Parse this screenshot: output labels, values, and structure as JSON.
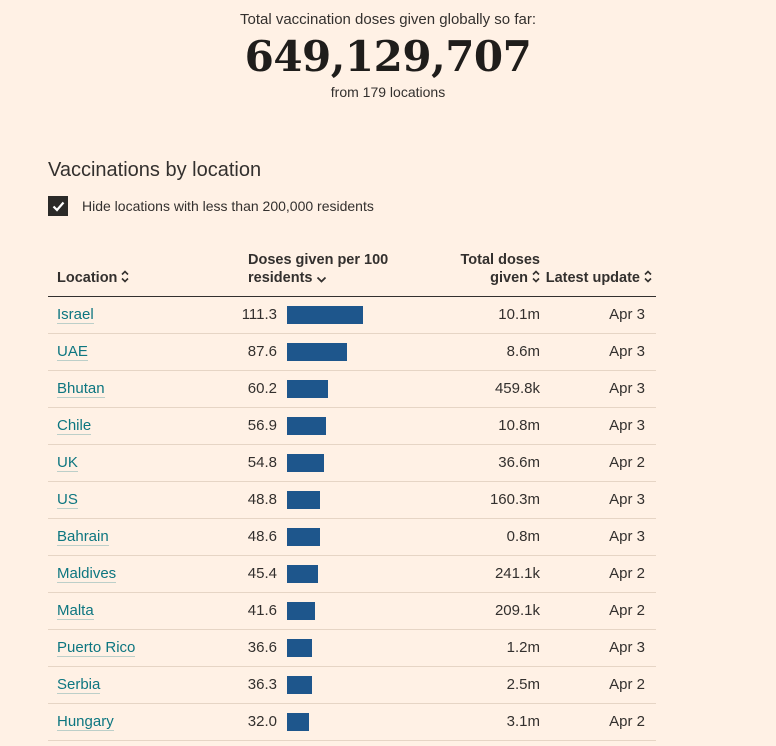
{
  "summary": {
    "label": "Total vaccination doses given globally so far:",
    "total": "649,129,707",
    "sublabel": "from 179 locations"
  },
  "section_title": "Vaccinations by location",
  "filter": {
    "label": "Hide locations with less than 200,000 residents",
    "checked": true
  },
  "table": {
    "columns": [
      {
        "label": "Location",
        "sort": "sortable"
      },
      {
        "label": "Doses given per 100 residents",
        "sort": "desc"
      },
      {
        "label": "Total doses given",
        "sort": "sortable"
      },
      {
        "label": "Latest update",
        "sort": "sortable"
      }
    ],
    "rows": [
      {
        "location": "Israel",
        "doses_per_100": "111.3",
        "total_doses": "10.1m",
        "latest_update": "Apr 3"
      },
      {
        "location": "UAE",
        "doses_per_100": "87.6",
        "total_doses": "8.6m",
        "latest_update": "Apr 3"
      },
      {
        "location": "Bhutan",
        "doses_per_100": "60.2",
        "total_doses": "459.8k",
        "latest_update": "Apr 3"
      },
      {
        "location": "Chile",
        "doses_per_100": "56.9",
        "total_doses": "10.8m",
        "latest_update": "Apr 3"
      },
      {
        "location": "UK",
        "doses_per_100": "54.8",
        "total_doses": "36.6m",
        "latest_update": "Apr 2"
      },
      {
        "location": "US",
        "doses_per_100": "48.8",
        "total_doses": "160.3m",
        "latest_update": "Apr 3"
      },
      {
        "location": "Bahrain",
        "doses_per_100": "48.6",
        "total_doses": "0.8m",
        "latest_update": "Apr 3"
      },
      {
        "location": "Maldives",
        "doses_per_100": "45.4",
        "total_doses": "241.1k",
        "latest_update": "Apr 2"
      },
      {
        "location": "Malta",
        "doses_per_100": "41.6",
        "total_doses": "209.1k",
        "latest_update": "Apr 2"
      },
      {
        "location": "Puerto Rico",
        "doses_per_100": "36.6",
        "total_doses": "1.2m",
        "latest_update": "Apr 3"
      },
      {
        "location": "Serbia",
        "doses_per_100": "36.3",
        "total_doses": "2.5m",
        "latest_update": "Apr 2"
      },
      {
        "location": "Hungary",
        "doses_per_100": "32.0",
        "total_doses": "3.1m",
        "latest_update": "Apr 2"
      }
    ]
  },
  "colors": {
    "background": "#fff1e5",
    "text": "#33302e",
    "link": "#0d7680",
    "bar": "#1e568c",
    "row_divider": "#e6d5c5"
  }
}
